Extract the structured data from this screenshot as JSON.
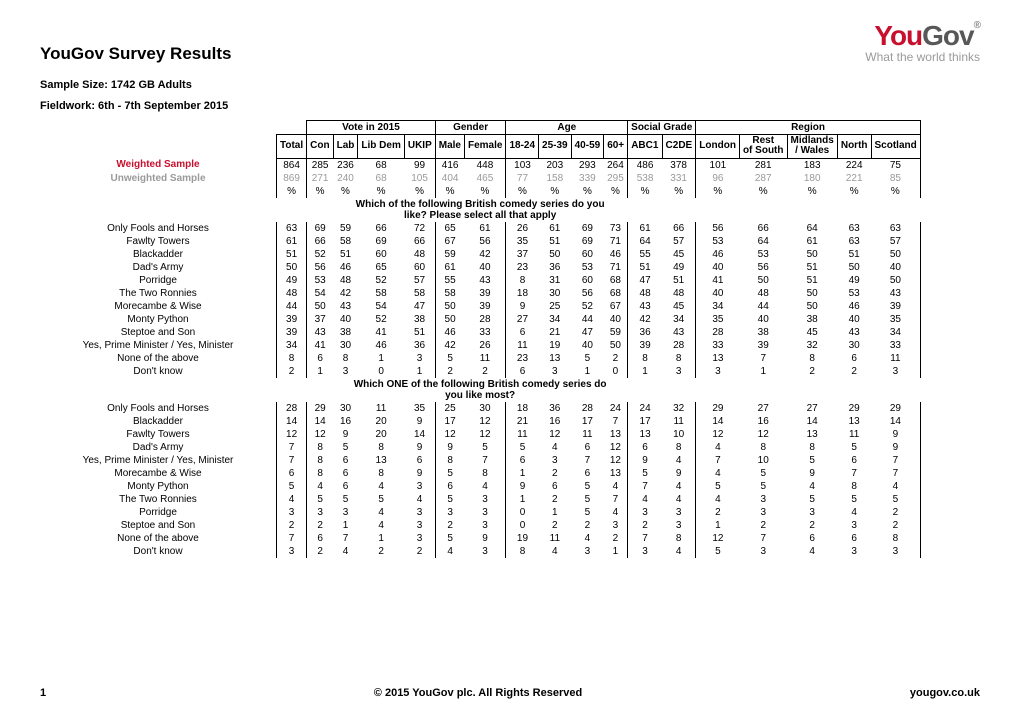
{
  "logo": {
    "you": "You",
    "gov": "Gov",
    "tag": "What the world thinks"
  },
  "title": "YouGov Survey Results",
  "meta1": "Sample Size: 1742 GB Adults",
  "meta2": "Fieldwork: 6th - 7th September 2015",
  "groupHeaders": [
    "Vote in 2015",
    "Gender",
    "Age",
    "Social Grade",
    "Region"
  ],
  "colHeaders": [
    "Total",
    "Con",
    "Lab",
    "Lib Dem",
    "UKIP",
    "Male",
    "Female",
    "18-24",
    "25-39",
    "40-59",
    "60+",
    "ABC1",
    "C2DE",
    "London",
    "Rest of South",
    "Midlands / Wales",
    "North",
    "Scotland"
  ],
  "sampleRows": {
    "weightedLabel": "Weighted Sample",
    "weighted": [
      "864",
      "285",
      "236",
      "68",
      "99",
      "416",
      "448",
      "103",
      "203",
      "293",
      "264",
      "486",
      "378",
      "101",
      "281",
      "183",
      "224",
      "75"
    ],
    "unweightedLabel": "Unweighted Sample",
    "unweighted": [
      "869",
      "271",
      "240",
      "68",
      "105",
      "404",
      "465",
      "77",
      "158",
      "339",
      "295",
      "538",
      "331",
      "96",
      "287",
      "180",
      "221",
      "85"
    ],
    "pctLabel": "%"
  },
  "q1": {
    "text": "Which of the following British comedy series do you like? Please select all that apply",
    "rows": [
      {
        "label": "Only Fools and Horses",
        "v": [
          "63",
          "69",
          "59",
          "66",
          "72",
          "65",
          "61",
          "26",
          "61",
          "69",
          "73",
          "61",
          "66",
          "56",
          "66",
          "64",
          "63",
          "63"
        ]
      },
      {
        "label": "Fawlty Towers",
        "v": [
          "61",
          "66",
          "58",
          "69",
          "66",
          "67",
          "56",
          "35",
          "51",
          "69",
          "71",
          "64",
          "57",
          "53",
          "64",
          "61",
          "63",
          "57"
        ]
      },
      {
        "label": "Blackadder",
        "v": [
          "51",
          "52",
          "51",
          "60",
          "48",
          "59",
          "42",
          "37",
          "50",
          "60",
          "46",
          "55",
          "45",
          "46",
          "53",
          "50",
          "51",
          "50"
        ]
      },
      {
        "label": "Dad's Army",
        "v": [
          "50",
          "56",
          "46",
          "65",
          "60",
          "61",
          "40",
          "23",
          "36",
          "53",
          "71",
          "51",
          "49",
          "40",
          "56",
          "51",
          "50",
          "40"
        ]
      },
      {
        "label": "Porridge",
        "v": [
          "49",
          "53",
          "48",
          "52",
          "57",
          "55",
          "43",
          "8",
          "31",
          "60",
          "68",
          "47",
          "51",
          "41",
          "50",
          "51",
          "49",
          "50"
        ]
      },
      {
        "label": "The Two Ronnies",
        "v": [
          "48",
          "54",
          "42",
          "58",
          "58",
          "58",
          "39",
          "18",
          "30",
          "56",
          "68",
          "48",
          "48",
          "40",
          "48",
          "50",
          "53",
          "43"
        ]
      },
      {
        "label": "Morecambe & Wise",
        "v": [
          "44",
          "50",
          "43",
          "54",
          "47",
          "50",
          "39",
          "9",
          "25",
          "52",
          "67",
          "43",
          "45",
          "34",
          "44",
          "50",
          "46",
          "39"
        ]
      },
      {
        "label": "Monty Python",
        "v": [
          "39",
          "37",
          "40",
          "52",
          "38",
          "50",
          "28",
          "27",
          "34",
          "44",
          "40",
          "42",
          "34",
          "35",
          "40",
          "38",
          "40",
          "35"
        ]
      },
      {
        "label": "Steptoe and Son",
        "v": [
          "39",
          "43",
          "38",
          "41",
          "51",
          "46",
          "33",
          "6",
          "21",
          "47",
          "59",
          "36",
          "43",
          "28",
          "38",
          "45",
          "43",
          "34"
        ]
      },
      {
        "label": "Yes, Prime Minister / Yes, Minister",
        "v": [
          "34",
          "41",
          "30",
          "46",
          "36",
          "42",
          "26",
          "11",
          "19",
          "40",
          "50",
          "39",
          "28",
          "33",
          "39",
          "32",
          "30",
          "33"
        ]
      },
      {
        "label": "None of the above",
        "v": [
          "8",
          "6",
          "8",
          "1",
          "3",
          "5",
          "11",
          "23",
          "13",
          "5",
          "2",
          "8",
          "8",
          "13",
          "7",
          "8",
          "6",
          "11"
        ]
      },
      {
        "label": "Don't know",
        "v": [
          "2",
          "1",
          "3",
          "0",
          "1",
          "2",
          "2",
          "6",
          "3",
          "1",
          "0",
          "1",
          "3",
          "3",
          "1",
          "2",
          "2",
          "3"
        ]
      }
    ]
  },
  "q2": {
    "text": "Which ONE of the following British comedy series do you like most?",
    "rows": [
      {
        "label": "Only Fools and Horses",
        "v": [
          "28",
          "29",
          "30",
          "11",
          "35",
          "25",
          "30",
          "18",
          "36",
          "28",
          "24",
          "24",
          "32",
          "29",
          "27",
          "27",
          "29",
          "29"
        ]
      },
      {
        "label": "Blackadder",
        "v": [
          "14",
          "14",
          "16",
          "20",
          "9",
          "17",
          "12",
          "21",
          "16",
          "17",
          "7",
          "17",
          "11",
          "14",
          "16",
          "14",
          "13",
          "14"
        ]
      },
      {
        "label": "Fawlty Towers",
        "v": [
          "12",
          "12",
          "9",
          "20",
          "14",
          "12",
          "12",
          "11",
          "12",
          "11",
          "13",
          "13",
          "10",
          "12",
          "12",
          "13",
          "11",
          "9"
        ]
      },
      {
        "label": "Dad's Army",
        "v": [
          "7",
          "8",
          "5",
          "8",
          "9",
          "9",
          "5",
          "5",
          "4",
          "6",
          "12",
          "6",
          "8",
          "4",
          "8",
          "8",
          "5",
          "9"
        ]
      },
      {
        "label": "Yes, Prime Minister / Yes, Minister",
        "v": [
          "7",
          "8",
          "6",
          "13",
          "6",
          "8",
          "7",
          "6",
          "3",
          "7",
          "12",
          "9",
          "4",
          "7",
          "10",
          "5",
          "6",
          "7"
        ]
      },
      {
        "label": "Morecambe & Wise",
        "v": [
          "6",
          "8",
          "6",
          "8",
          "9",
          "5",
          "8",
          "1",
          "2",
          "6",
          "13",
          "5",
          "9",
          "4",
          "5",
          "9",
          "7",
          "7"
        ]
      },
      {
        "label": "Monty Python",
        "v": [
          "5",
          "4",
          "6",
          "4",
          "3",
          "6",
          "4",
          "9",
          "6",
          "5",
          "4",
          "7",
          "4",
          "5",
          "5",
          "4",
          "8",
          "4"
        ]
      },
      {
        "label": "The Two Ronnies",
        "v": [
          "4",
          "5",
          "5",
          "5",
          "4",
          "5",
          "3",
          "1",
          "2",
          "5",
          "7",
          "4",
          "4",
          "4",
          "3",
          "5",
          "5",
          "5"
        ]
      },
      {
        "label": "Porridge",
        "v": [
          "3",
          "3",
          "3",
          "4",
          "3",
          "3",
          "3",
          "0",
          "1",
          "5",
          "4",
          "3",
          "3",
          "2",
          "3",
          "3",
          "4",
          "2"
        ]
      },
      {
        "label": "Steptoe and Son",
        "v": [
          "2",
          "2",
          "1",
          "4",
          "3",
          "2",
          "3",
          "0",
          "2",
          "2",
          "3",
          "2",
          "3",
          "1",
          "2",
          "2",
          "3",
          "2"
        ]
      },
      {
        "label": "None of the above",
        "v": [
          "7",
          "6",
          "7",
          "1",
          "3",
          "5",
          "9",
          "19",
          "11",
          "4",
          "2",
          "7",
          "8",
          "12",
          "7",
          "6",
          "6",
          "8"
        ]
      },
      {
        "label": "Don't know",
        "v": [
          "3",
          "2",
          "4",
          "2",
          "2",
          "4",
          "3",
          "8",
          "4",
          "3",
          "1",
          "3",
          "4",
          "5",
          "3",
          "4",
          "3",
          "3"
        ]
      }
    ]
  },
  "footer": {
    "page": "1",
    "center": "© 2015 YouGov plc. All Rights Reserved",
    "right": "yougov.co.uk"
  }
}
